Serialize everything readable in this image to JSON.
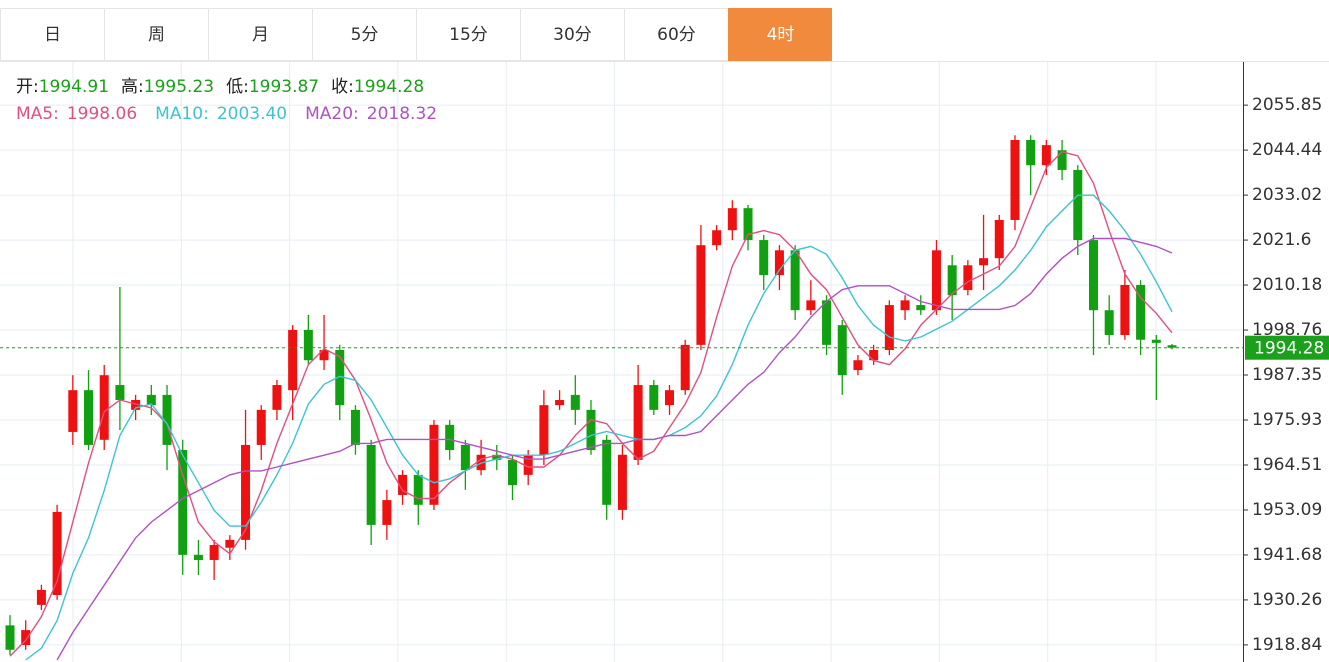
{
  "tabs": {
    "items": [
      "日",
      "周",
      "月",
      "5分",
      "15分",
      "30分",
      "60分",
      "4时"
    ],
    "active": 7
  },
  "chart_data": {
    "type": "candlestick",
    "info": [
      {
        "label": "开:",
        "value": "1994.91"
      },
      {
        "label": "高:",
        "value": "1995.23"
      },
      {
        "label": "低:",
        "value": "1993.87"
      },
      {
        "label": "收:",
        "value": "1994.28"
      }
    ],
    "up_color": "#ee1111",
    "down_color": "#11a011",
    "open": [
      1923.8,
      1918.8,
      1929.0,
      1931.5,
      1972.9,
      1983.5,
      1970.9,
      1984.8,
      1978.5,
      1982.3,
      1982.3,
      1968.3,
      1941.7,
      1940.4,
      1943.5,
      1945.5,
      1969.6,
      1978.5,
      1983.5,
      1998.8,
      1991.1,
      1993.7,
      1978.5,
      1969.6,
      1949.3,
      1956.9,
      1962.0,
      1954.4,
      1974.7,
      1969.6,
      1963.2,
      1967.1,
      1965.8,
      1962.0,
      1967.1,
      1979.7,
      1982.3,
      1978.5,
      1970.9,
      1953.1,
      1965.8,
      1984.8,
      1979.7,
      1983.5,
      1995.0,
      2020.3,
      2024.1,
      2029.7,
      2021.6,
      2012.7,
      2019.0,
      2003.8,
      2006.3,
      2000.0,
      1988.6,
      1991.1,
      1993.7,
      2003.8,
      2005.1,
      2003.8,
      2015.2,
      2008.9,
      2015.2,
      2017.0,
      2026.7,
      2047.0,
      2040.6,
      2044.4,
      2039.4,
      2021.6,
      2003.8,
      1997.5,
      2010.2,
      1996.3,
      1994.91
    ],
    "close": [
      1917.6,
      1922.6,
      1932.8,
      1952.6,
      1983.5,
      1969.6,
      1987.3,
      1981.0,
      1981.0,
      1979.7,
      1969.6,
      1941.7,
      1940.4,
      1944.2,
      1945.5,
      1969.6,
      1978.5,
      1984.8,
      1998.8,
      1991.1,
      1993.7,
      1979.7,
      1969.6,
      1949.3,
      1955.6,
      1962.0,
      1954.4,
      1974.7,
      1968.3,
      1963.2,
      1967.1,
      1965.8,
      1959.4,
      1967.1,
      1979.7,
      1981.0,
      1978.5,
      1968.3,
      1954.4,
      1967.1,
      1984.8,
      1978.5,
      1983.5,
      1995.0,
      2020.3,
      2024.1,
      2029.7,
      2021.6,
      2012.7,
      2019.0,
      2003.8,
      2006.3,
      1995.0,
      1987.3,
      1991.1,
      1993.7,
      2005.1,
      2006.3,
      2003.8,
      2019.0,
      2007.6,
      2015.2,
      2017.0,
      2026.7,
      2047.0,
      2040.6,
      2045.7,
      2039.4,
      2021.6,
      2003.8,
      1997.5,
      2010.2,
      1996.3,
      1995.5,
      1994.28
    ],
    "high": [
      1926.4,
      1925.1,
      1934.1,
      1954.4,
      1987.3,
      1988.6,
      1989.9,
      2009.7,
      1982.3,
      1984.8,
      1984.8,
      1970.9,
      1945.5,
      1945.5,
      1946.7,
      1978.5,
      1979.7,
      1986.1,
      2000.0,
      2002.6,
      2002.6,
      1995.0,
      1979.7,
      1970.9,
      1958.2,
      1963.2,
      1963.2,
      1975.9,
      1975.9,
      1970.9,
      1970.9,
      1969.6,
      1967.1,
      1968.3,
      1983.5,
      1983.5,
      1987.3,
      1981.0,
      1972.1,
      1969.6,
      1989.9,
      1986.1,
      1984.8,
      1996.3,
      2025.4,
      2025.4,
      2031.7,
      2030.5,
      2022.9,
      2020.3,
      2020.3,
      2011.4,
      2007.6,
      2001.3,
      1992.4,
      1995.0,
      2006.3,
      2007.6,
      2007.6,
      2021.6,
      2017.8,
      2016.5,
      2028.0,
      2028.0,
      2048.2,
      2048.2,
      2047.0,
      2047.0,
      2040.6,
      2022.9,
      2007.6,
      2014.0,
      2011.4,
      1997.5,
      1995.23
    ],
    "low": [
      1916.3,
      1917.6,
      1927.7,
      1930.3,
      1969.6,
      1968.3,
      1968.3,
      1973.4,
      1975.9,
      1977.2,
      1963.2,
      1936.6,
      1936.6,
      1935.3,
      1940.4,
      1943.0,
      1965.8,
      1975.9,
      1975.9,
      1989.9,
      1988.6,
      1975.9,
      1967.1,
      1944.2,
      1945.5,
      1954.4,
      1949.3,
      1953.1,
      1965.8,
      1958.2,
      1961.9,
      1963.2,
      1955.6,
      1959.4,
      1964.5,
      1978.5,
      1974.7,
      1967.1,
      1950.6,
      1950.6,
      1964.5,
      1977.2,
      1977.2,
      1982.3,
      1993.7,
      2019.0,
      2021.6,
      2019.0,
      2008.9,
      2008.9,
      2001.3,
      2002.6,
      1992.4,
      1982.3,
      1987.3,
      1989.9,
      1992.4,
      2001.3,
      2002.6,
      2002.6,
      2001.3,
      2007.6,
      2008.9,
      2014.0,
      2024.1,
      2033.0,
      2038.1,
      2036.8,
      2017.8,
      1992.4,
      1995.0,
      1996.3,
      1992.4,
      1981.0,
      1993.87
    ],
    "series": [
      {
        "name": "MA5:",
        "label": "1998.06",
        "color": "#e0507e",
        "values": [
          1916,
          1920,
          1926,
          1935,
          1950,
          1965,
          1978,
          1981,
          1980,
          1979,
          1975,
          1962,
          1950,
          1945,
          1942,
          1948,
          1958,
          1970,
          1980,
          1990,
          1994,
          1992,
          1986,
          1976,
          1965,
          1958,
          1956,
          1956,
          1960,
          1963,
          1966,
          1967,
          1966,
          1964,
          1964,
          1967,
          1972,
          1976,
          1975,
          1970,
          1966,
          1968,
          1974,
          1980,
          1988,
          2002,
          2015,
          2023,
          2024,
          2023,
          2019,
          2013,
          2009,
          2002,
          1995,
          1991,
          1990,
          1994,
          2000,
          2004,
          2008,
          2011,
          2013,
          2015,
          2020,
          2030,
          2040,
          2044,
          2043,
          2036,
          2024,
          2013,
          2007,
          2003,
          1998.06
        ]
      },
      {
        "name": "MA10:",
        "label": "2003.40",
        "color": "#3cc4d2",
        "values": [
          null,
          1915,
          1918,
          1925,
          1937,
          1946,
          1958,
          1972,
          1979,
          1980,
          1975,
          1967,
          1960,
          1953,
          1949,
          1949,
          1955,
          1962,
          1970,
          1980,
          1985,
          1987,
          1986,
          1981,
          1974,
          1967,
          1962,
          1960,
          1961,
          1963,
          1965,
          1966,
          1967,
          1967,
          1967,
          1968,
          1970,
          1972,
          1973,
          1972,
          1971,
          1971,
          1972,
          1974,
          1977,
          1982,
          1990,
          2000,
          2008,
          2014,
          2019,
          2020,
          2018,
          2012,
          2005,
          2000,
          1997,
          1996,
          1997,
          1999,
          2001,
          2004,
          2007,
          2010,
          2014,
          2019,
          2025,
          2029,
          2033,
          2033,
          2029,
          2024,
          2018,
          2011,
          2003.4
        ]
      },
      {
        "name": "MA20:",
        "label": "2018.32",
        "color": "#b052c2",
        "values": [
          null,
          null,
          null,
          1915,
          1922,
          1928,
          1934,
          1940,
          1946,
          1950,
          1953,
          1956,
          1958,
          1960,
          1962,
          1963,
          1963,
          1964,
          1965,
          1966,
          1967,
          1968,
          1970,
          1970,
          1971,
          1971,
          1971,
          1971,
          1971,
          1970,
          1969,
          1968,
          1967,
          1966,
          1966,
          1967,
          1968,
          1969,
          1970,
          1970,
          1971,
          1971,
          1972,
          1972,
          1973,
          1977,
          1981,
          1985,
          1988,
          1993,
          1997,
          2002,
          2006,
          2009,
          2010,
          2010,
          2010,
          2008,
          2006,
          2005,
          2004,
          2004,
          2004,
          2004,
          2005,
          2008,
          2013,
          2017,
          2020,
          2022,
          2022,
          2022,
          2021,
          2020,
          2018.32
        ]
      }
    ],
    "current_price": 1994.28,
    "ylim": [
      1914.5,
      2066.8
    ],
    "yticks": [
      2055.85,
      2044.44,
      2033.02,
      2021.6,
      2010.18,
      1998.76,
      1987.35,
      1975.93,
      1964.51,
      1953.09,
      1941.68,
      1930.26,
      1918.84
    ],
    "grid": true
  }
}
